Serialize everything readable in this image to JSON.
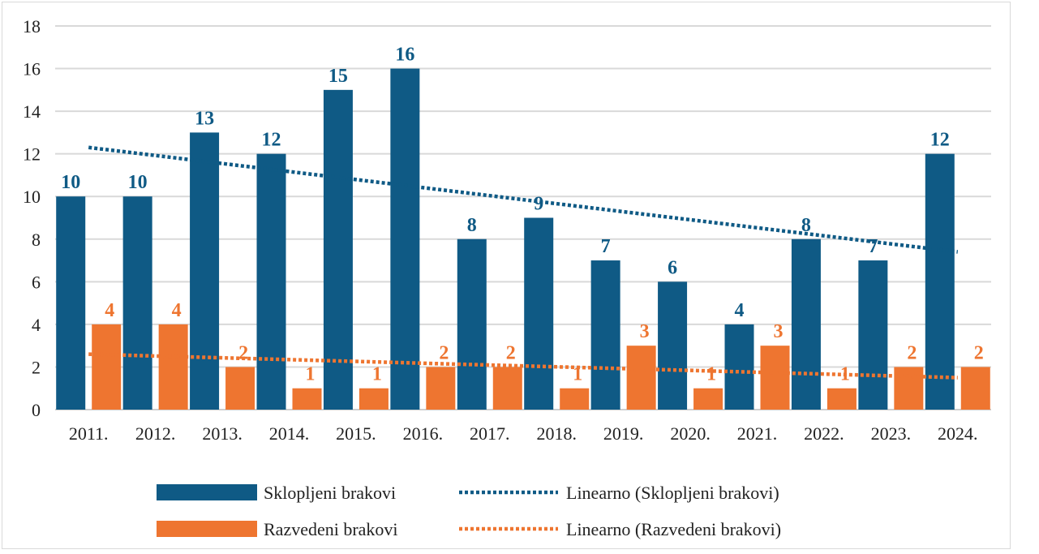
{
  "chart_data": {
    "type": "bar",
    "categories": [
      "2011.",
      "2012.",
      "2013.",
      "2014.",
      "2015.",
      "2016.",
      "2017.",
      "2018.",
      "2019.",
      "2020.",
      "2021.",
      "2022.",
      "2023.",
      "2024."
    ],
    "series": [
      {
        "name": "Sklopljeni brakovi",
        "color": "#0f5a85",
        "values": [
          10,
          10,
          13,
          12,
          15,
          16,
          8,
          9,
          7,
          6,
          4,
          8,
          7,
          12
        ]
      },
      {
        "name": "Razvedeni brakovi",
        "color": "#ee7530",
        "values": [
          4,
          4,
          2,
          1,
          1,
          2,
          2,
          1,
          3,
          1,
          3,
          1,
          2,
          2
        ]
      }
    ],
    "trendlines": [
      {
        "name": "Linearno (Sklopljeni brakovi)",
        "series": "Sklopljeni brakovi",
        "type": "linear",
        "start": 12.3,
        "end": 7.4,
        "color": "#0f5a85"
      },
      {
        "name": "Linearno (Razvedeni brakovi)",
        "series": "Razvedeni brakovi",
        "type": "linear",
        "start": 2.6,
        "end": 1.5,
        "color": "#ee7530"
      }
    ],
    "ylim": [
      0,
      18
    ],
    "yticks": [
      0,
      2,
      4,
      6,
      8,
      10,
      12,
      14,
      16,
      18
    ],
    "grid": true,
    "legend_position": "bottom",
    "title": "",
    "xlabel": "",
    "ylabel": ""
  }
}
